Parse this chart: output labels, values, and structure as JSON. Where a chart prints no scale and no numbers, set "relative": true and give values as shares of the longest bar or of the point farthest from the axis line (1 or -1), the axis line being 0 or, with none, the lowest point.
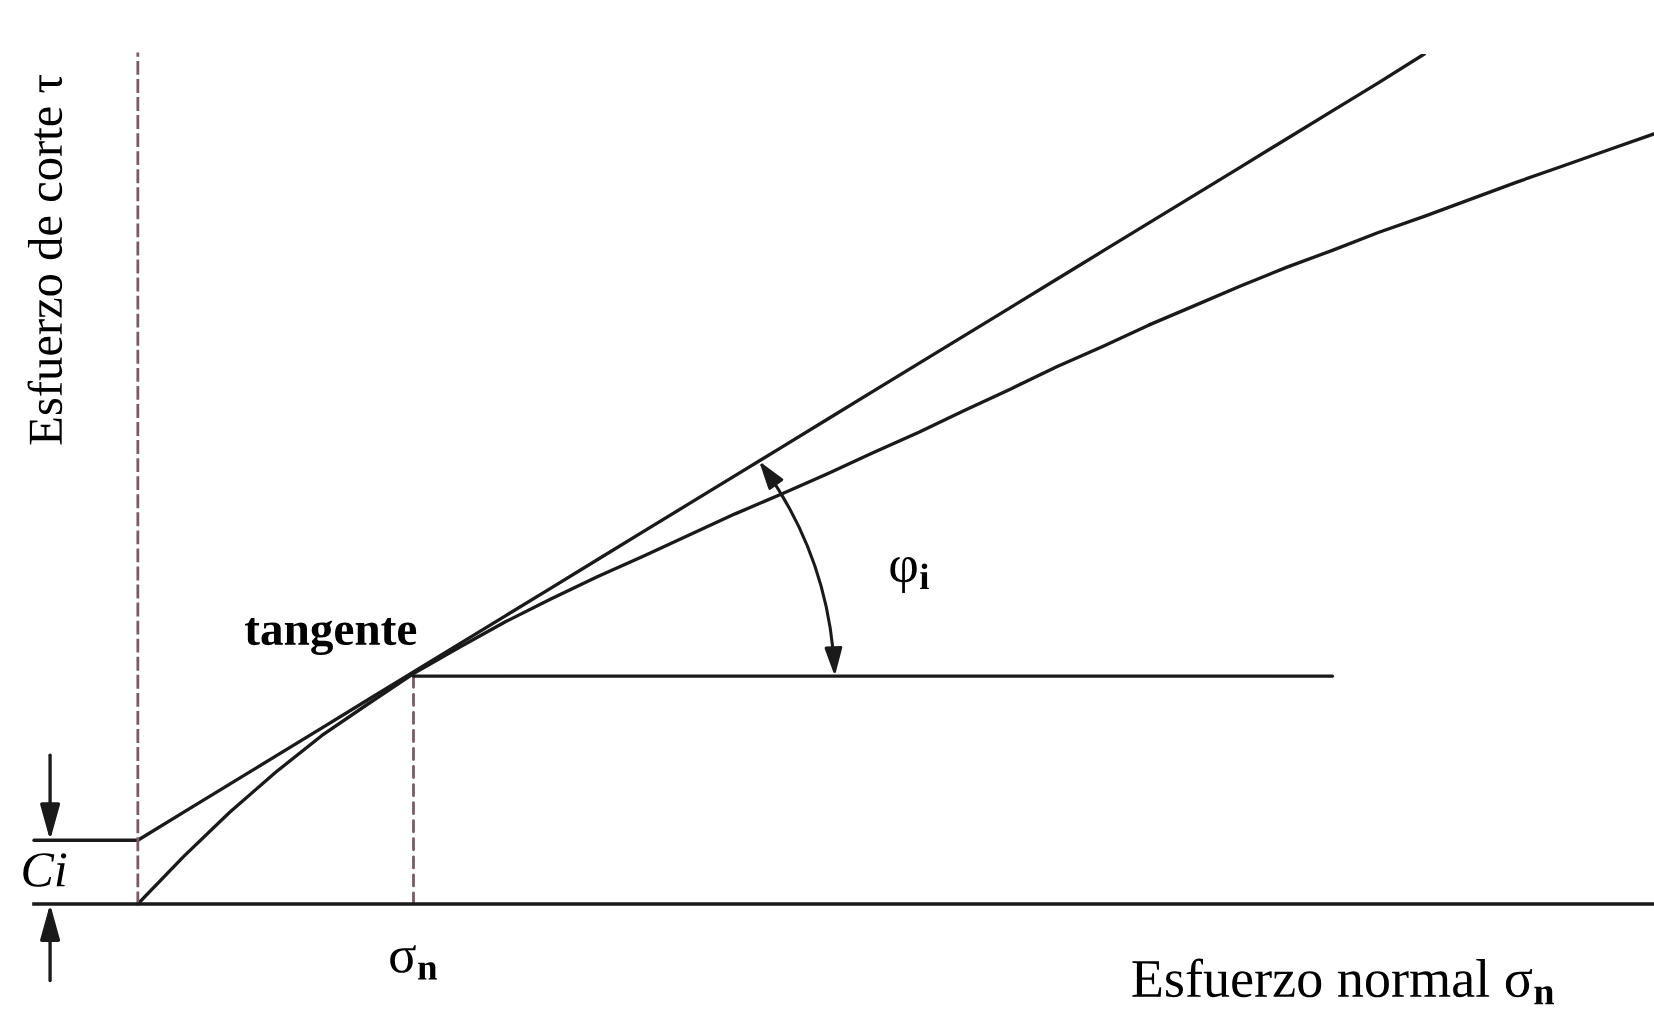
{
  "chart_data": {
    "type": "line",
    "relative": true,
    "xlabel": "Esfuerzo normal σ$_{n}$",
    "ylabel": "Esfuerzo de corte τ",
    "categories": [
      null,
      null,
      null,
      null,
      null,
      null,
      null,
      null,
      null,
      null,
      null,
      null,
      null,
      null,
      null,
      null,
      null,
      null,
      null,
      null,
      null,
      null,
      null,
      null,
      null,
      null,
      null,
      null,
      null,
      null,
      null,
      null,
      null,
      null
    ],
    "series": [
      {
        "color": "#1a1a1a",
        "values": [
          0,
          0.056,
          0.108,
          0.155,
          0.198,
          0.235,
          0.271,
          0.302,
          0.332,
          0.359,
          0.385,
          0.409,
          0.434,
          0.459,
          0.482,
          0.506,
          0.531,
          0.555,
          0.581,
          0.606,
          0.632,
          0.656,
          0.681,
          0.704,
          0.727,
          0.749,
          0.769,
          0.79,
          0.809,
          0.829,
          0.849,
          0.868,
          0.887,
          0.906
        ]
      },
      {
        "color": "#1a1a1a",
        "values": [
          0.075,
          0.108,
          0.141,
          0.174,
          0.207,
          0.24,
          0.273,
          0.306,
          0.339,
          0.372,
          0.405,
          0.438,
          0.471,
          0.504,
          0.537,
          0.57,
          0.603,
          0.636,
          0.669,
          0.702,
          0.735,
          0.768,
          0.801,
          0.834,
          0.867,
          0.9,
          0.933,
          0.966,
          1,
          null,
          null,
          null,
          null,
          null
        ]
      },
      {
        "color": "#1a1a1a",
        "values": [
          null,
          null,
          null,
          null,
          null,
          null,
          0.268,
          0.268,
          0.268,
          0.268,
          0.268,
          0.268,
          0.268,
          0.268,
          0.268,
          0.268,
          0.268,
          0.268,
          0.268,
          0.268,
          0.268,
          0.268,
          0.268,
          0.268,
          0.268,
          0.268,
          0.268,
          null,
          null,
          null,
          null,
          null,
          null,
          null
        ]
      }
    ],
    "annotations": [
      "tangente",
      "Ci",
      "σ$_{n}$",
      "φ$_{i}$"
    ]
  }
}
